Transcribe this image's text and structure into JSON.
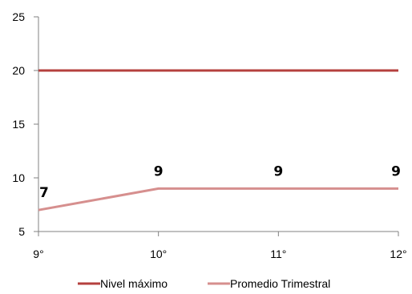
{
  "chart_data": {
    "type": "line",
    "categories": [
      "9°",
      "10°",
      "11°",
      "12°"
    ],
    "series": [
      {
        "name": "Nivel máximo",
        "values": [
          20,
          20,
          20,
          20
        ],
        "color": "#b5403e",
        "show_labels": false
      },
      {
        "name": "Promedio Trimestral",
        "values": [
          7,
          9,
          9,
          9
        ],
        "color": "#d68f8e",
        "show_labels": true
      }
    ],
    "ylim": [
      5,
      25
    ],
    "yticks": [
      5,
      10,
      15,
      20,
      25
    ],
    "grid": false,
    "legend": "bottom"
  }
}
